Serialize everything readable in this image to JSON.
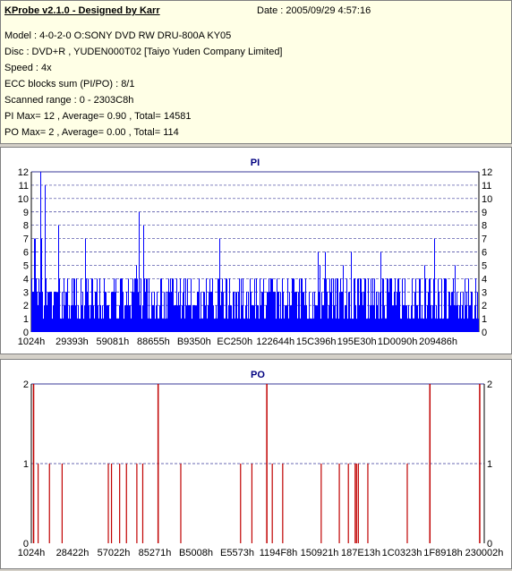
{
  "header": {
    "title": "KProbe v2.1.0 - Designed by Karr",
    "date": "Date : 2005/09/29 4:57:16",
    "lines": [
      "Model : 4-0-2-0 O:SONY    DVD RW DRU-800A  KY05",
      "Disc : DVD+R , YUDEN000T02 [Taiyo Yuden Company Limited]",
      "Speed : 4x",
      "ECC blocks sum (PI/PO) : 8/1",
      "Scanned range : 0 - 2303C8h",
      "PI Max= 12 , Average= 0.90 , Total= 14581",
      "PO Max= 2 , Average= 0.00 , Total= 114"
    ]
  },
  "colors": {
    "pi_bar": "#0000ff",
    "po_bar": "#c00000",
    "grid": "#3a3a9a",
    "title": "#000080",
    "panel_bg": "#ffffff",
    "info_bg": "#ffffe6"
  },
  "chart_data": [
    {
      "type": "bar",
      "title": "PI",
      "xlabel": "",
      "ylabel": "",
      "ylim": [
        0,
        12
      ],
      "y_ticks": [
        0,
        1,
        2,
        3,
        4,
        5,
        6,
        7,
        8,
        9,
        10,
        11,
        12
      ],
      "x_tick_labels": [
        "1024h",
        "29393h",
        "59081h",
        "88655h",
        "B9350h",
        "EC250h",
        "122644h",
        "15C396h",
        "195E30h",
        "1D0090h",
        "209486h"
      ],
      "grid": true,
      "max": 12,
      "average": 0.9,
      "peaks": [
        {
          "position": 0.02,
          "value": 12
        },
        {
          "position": 0.03,
          "value": 11
        },
        {
          "position": 0.06,
          "value": 8
        },
        {
          "position": 0.12,
          "value": 7
        },
        {
          "position": 0.24,
          "value": 9
        },
        {
          "position": 0.25,
          "value": 8
        },
        {
          "position": 0.42,
          "value": 7
        },
        {
          "position": 0.64,
          "value": 6
        },
        {
          "position": 0.78,
          "value": 6
        },
        {
          "position": 0.9,
          "value": 7
        }
      ],
      "baseline_range": [
        1,
        4
      ]
    },
    {
      "type": "bar",
      "title": "PO",
      "xlabel": "",
      "ylabel": "",
      "ylim": [
        0,
        2
      ],
      "y_ticks": [
        0,
        1,
        2
      ],
      "x_tick_labels": [
        "1024h",
        "28422h",
        "57022h",
        "85271h",
        "B5008h",
        "E5573h",
        "1194F8h",
        "150921h",
        "187E13h",
        "1C0323h",
        "1F8918h",
        "230002h"
      ],
      "grid": true,
      "max": 2,
      "average": 0.0,
      "spikes": [
        {
          "position": 0.005,
          "value": 2
        },
        {
          "position": 0.015,
          "value": 1
        },
        {
          "position": 0.04,
          "value": 1
        },
        {
          "position": 0.068,
          "value": 1
        },
        {
          "position": 0.17,
          "value": 1
        },
        {
          "position": 0.177,
          "value": 1
        },
        {
          "position": 0.195,
          "value": 1
        },
        {
          "position": 0.21,
          "value": 1
        },
        {
          "position": 0.233,
          "value": 1
        },
        {
          "position": 0.246,
          "value": 1
        },
        {
          "position": 0.28,
          "value": 2
        },
        {
          "position": 0.33,
          "value": 1
        },
        {
          "position": 0.462,
          "value": 1
        },
        {
          "position": 0.487,
          "value": 1
        },
        {
          "position": 0.52,
          "value": 2
        },
        {
          "position": 0.532,
          "value": 1
        },
        {
          "position": 0.555,
          "value": 1
        },
        {
          "position": 0.64,
          "value": 1
        },
        {
          "position": 0.68,
          "value": 1
        },
        {
          "position": 0.7,
          "value": 1
        },
        {
          "position": 0.715,
          "value": 1
        },
        {
          "position": 0.718,
          "value": 1
        },
        {
          "position": 0.722,
          "value": 1
        },
        {
          "position": 0.743,
          "value": 1
        },
        {
          "position": 0.83,
          "value": 1
        },
        {
          "position": 0.88,
          "value": 2
        },
        {
          "position": 0.99,
          "value": 2
        }
      ]
    }
  ]
}
